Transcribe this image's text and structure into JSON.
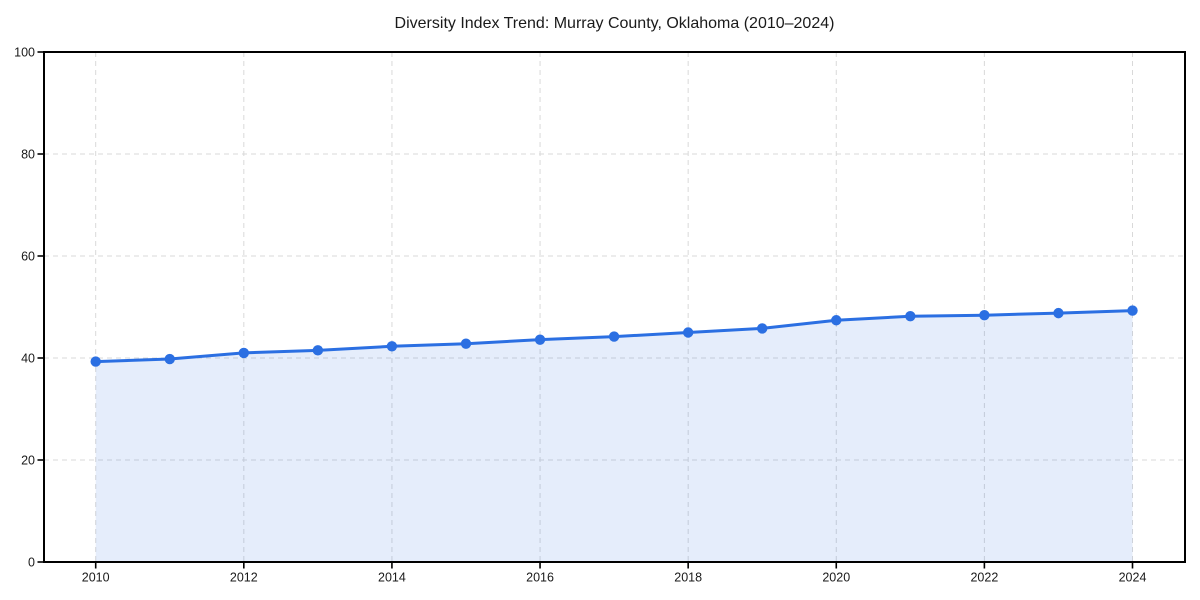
{
  "chart_data": {
    "type": "area",
    "title": "Diversity Index Trend: Murray County, Oklahoma (2010–2024)",
    "x": [
      2010,
      2011,
      2012,
      2013,
      2014,
      2015,
      2016,
      2017,
      2018,
      2019,
      2020,
      2021,
      2022,
      2023,
      2024
    ],
    "series": [
      {
        "name": "Diversity Index",
        "values": [
          39.3,
          39.8,
          41.0,
          41.5,
          42.3,
          42.8,
          43.6,
          44.2,
          45.0,
          45.8,
          47.4,
          48.2,
          48.4,
          48.8,
          49.3
        ]
      }
    ],
    "xlabel": "",
    "ylabel": "",
    "ylim": [
      0,
      100
    ],
    "y_ticks": [
      0,
      20,
      40,
      60,
      80,
      100
    ],
    "x_ticks": [
      2010,
      2012,
      2014,
      2016,
      2018,
      2020,
      2022,
      2024
    ],
    "grid": "dashed-both-axes",
    "legend_position": "none",
    "marker": "circle",
    "colors": {
      "line": "#2b6fe2",
      "marker": "#2b6fe2",
      "area_fill": "#2b6fe2",
      "area_opacity": 0.12,
      "grid": "#d9d9d9",
      "axis": "#000000",
      "text": "#1a1a1a",
      "background": "#ffffff"
    }
  }
}
